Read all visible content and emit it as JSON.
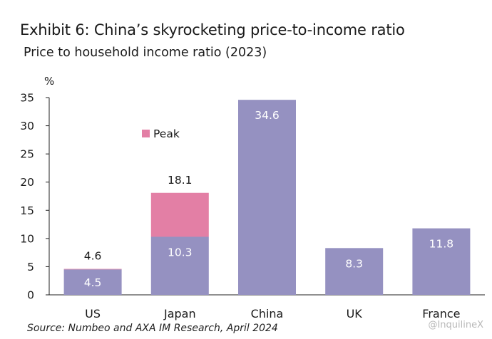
{
  "page": {
    "title": "Exhibit 6: China’s skyrocketing price-to-income ratio",
    "subtitle": "Price to household income ratio (2023)",
    "source": "Source: Numbeo and AXA IM Research, April 2024",
    "watermark": "@InquilineX"
  },
  "chart_data": {
    "type": "bar",
    "title": "Exhibit 6: China’s skyrocketing price-to-income ratio",
    "subtitle": "Price to household income ratio (2023)",
    "ylabel": "%",
    "ylim": [
      0,
      35
    ],
    "yticks": [
      0,
      5,
      10,
      15,
      20,
      25,
      30,
      35
    ],
    "categories": [
      "US",
      "Japan",
      "China",
      "UK",
      "France"
    ],
    "series": [
      {
        "name": "",
        "color": "#9591c1",
        "values": [
          4.5,
          10.3,
          34.6,
          8.3,
          11.8
        ]
      },
      {
        "name": "Peak",
        "color": "#e37fa5",
        "values": [
          4.6,
          18.1,
          null,
          null,
          null
        ]
      }
    ],
    "value_labels": {
      "base": [
        "4.5",
        "10.3",
        "34.6",
        "8.3",
        "11.8"
      ],
      "peak": [
        "4.6",
        "18.1",
        "",
        "",
        ""
      ]
    },
    "legend": {
      "position": "top-left",
      "entries": [
        "Peak"
      ]
    },
    "grid": false
  }
}
